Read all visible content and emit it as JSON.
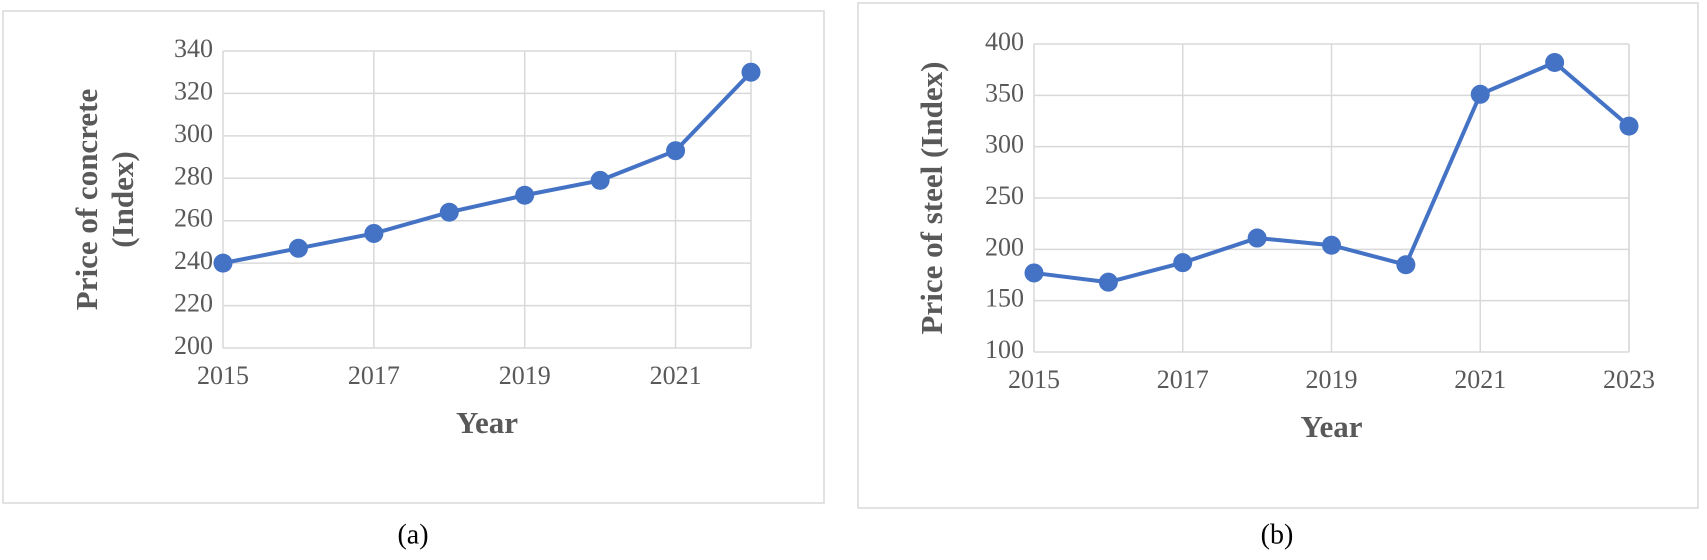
{
  "chart_data": [
    {
      "type": "line",
      "caption": "(a)",
      "xlabel": "Year",
      "ylabel": [
        "Price of concrete",
        "(Index)"
      ],
      "x": [
        2015,
        2016,
        2017,
        2018,
        2019,
        2020,
        2021,
        2022
      ],
      "series": [
        {
          "color": "#4472c4",
          "values": [
            240,
            247,
            254,
            264,
            272,
            279,
            293,
            330
          ]
        }
      ],
      "xlim": [
        2015,
        2022
      ],
      "xticks": [
        2015,
        2017,
        2019,
        2021
      ],
      "ylim": [
        200,
        340
      ],
      "yticks": [
        200,
        220,
        240,
        260,
        280,
        300,
        320,
        340
      ],
      "grid": true
    },
    {
      "type": "line",
      "caption": "(b)",
      "xlabel": "Year",
      "ylabel": [
        "Price of steel (Index)"
      ],
      "x": [
        2015,
        2016,
        2017,
        2018,
        2019,
        2020,
        2021,
        2022,
        2023
      ],
      "series": [
        {
          "color": "#4472c4",
          "values": [
            177,
            168,
            187,
            211,
            204,
            185,
            351,
            382,
            320
          ]
        }
      ],
      "xlim": [
        2015,
        2023
      ],
      "xticks": [
        2015,
        2017,
        2019,
        2021,
        2023
      ],
      "ylim": [
        100,
        400
      ],
      "yticks": [
        100,
        150,
        200,
        250,
        300,
        350,
        400
      ],
      "grid": true
    }
  ]
}
